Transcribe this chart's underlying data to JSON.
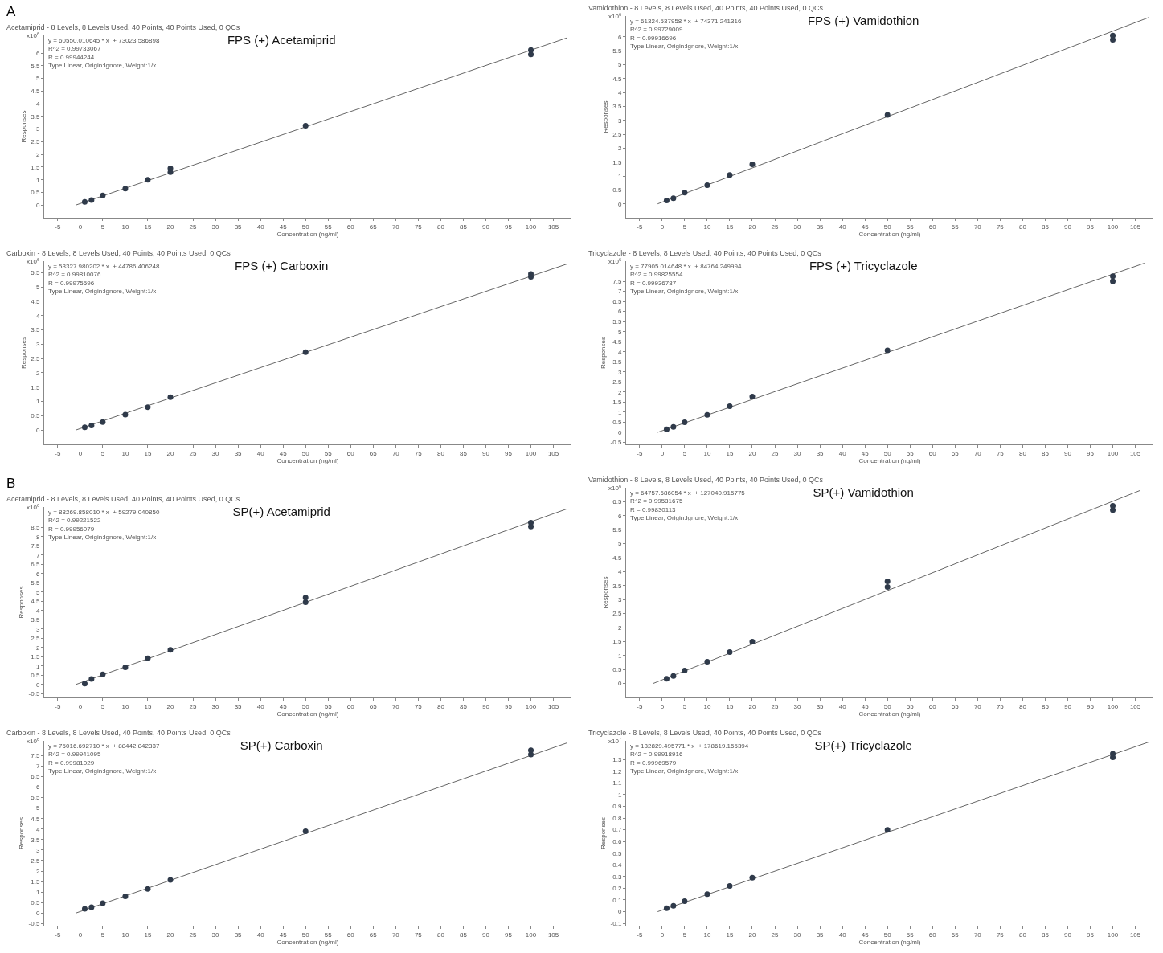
{
  "chart_data": [
    {
      "type": "scatter",
      "title": "FPS (+) Acetamiprid",
      "xlabel": "Concentration (ng/ml)",
      "ylabel": "Responses",
      "annotations": [
        "Acetamiprid - 8 Levels, 8 Levels Used, 40 Points, 40 Points Used, 0 QCs",
        "y = 60550.010645 * x  + 73023.586898\nR^2 = 0.99733067\nR = 0.99944244\nType:Linear, Origin:Ignore, Weight:1/x",
        "x10$^{6}$",
        "A"
      ],
      "xlim": [
        -8,
        109
      ],
      "xticks": [
        -5,
        0,
        5,
        10,
        15,
        20,
        25,
        30,
        35,
        40,
        45,
        50,
        55,
        60,
        65,
        70,
        75,
        80,
        85,
        90,
        95,
        100,
        105
      ],
      "ylim": [
        -0.5,
        6.7
      ],
      "yticks": [
        0,
        0.5,
        1,
        1.5,
        2,
        2.5,
        3,
        3.5,
        4,
        4.5,
        5,
        5.5,
        6
      ],
      "series": [
        {
          "color": "#2f3a4a",
          "marker": "circle",
          "x": [
            1,
            2.5,
            5,
            10,
            15,
            20,
            20,
            50,
            100,
            100
          ],
          "values": [
            0.13,
            0.2,
            0.38,
            0.65,
            1.0,
            1.3,
            1.45,
            3.13,
            5.95,
            6.12
          ]
        },
        {
          "type": "line",
          "marker": "none",
          "color": "#666666",
          "x": [
            -1,
            108
          ],
          "values": [
            0.0,
            6.6
          ]
        }
      ]
    },
    {
      "type": "scatter",
      "title": "FPS (+) Vamidothion",
      "xlabel": "Concentration (ng/ml)",
      "ylabel": "Responses",
      "annotations": [
        "Vamidothion - 8 Levels, 8 Levels Used, 40 Points, 40 Points Used, 0 QCs",
        "y = 61324.537958 * x  + 74371.241316\nR^2 = 0.99729009\nR = 0.99916696\nType:Linear, Origin:Ignore, Weight:1/x",
        "x10$^{6}$"
      ],
      "xlim": [
        -8,
        109
      ],
      "xticks": [
        -5,
        0,
        5,
        10,
        15,
        20,
        25,
        30,
        35,
        40,
        45,
        50,
        55,
        60,
        65,
        70,
        75,
        80,
        85,
        90,
        95,
        100,
        105
      ],
      "ylim": [
        -0.5,
        6.75
      ],
      "yticks": [
        0,
        0.5,
        1,
        1.5,
        2,
        2.5,
        3,
        3.5,
        4,
        4.5,
        5,
        5.5,
        6
      ],
      "series": [
        {
          "color": "#2f3a4a",
          "marker": "circle",
          "x": [
            1,
            2.5,
            5,
            10,
            15,
            20,
            50,
            100,
            100
          ],
          "values": [
            0.12,
            0.2,
            0.4,
            0.67,
            1.04,
            1.42,
            3.2,
            5.9,
            6.05
          ]
        },
        {
          "type": "line",
          "marker": "none",
          "color": "#666666",
          "x": [
            -1,
            108
          ],
          "values": [
            0.0,
            6.7
          ]
        }
      ]
    },
    {
      "type": "scatter",
      "title": "FPS (+) Carboxin",
      "xlabel": "Concentration (ng/ml)",
      "ylabel": "Responses",
      "annotations": [
        "Carboxin - 8 Levels, 8 Levels Used, 40 Points, 40 Points Used, 0 QCs",
        "y = 53327.980202 * x  + 44786.406248\nR^2 = 0.99810076\nR = 0.99975596\nType:Linear, Origin:Ignore, Weight:1/x",
        "x10$^{6}$"
      ],
      "xlim": [
        -8,
        109
      ],
      "xticks": [
        -5,
        0,
        5,
        10,
        15,
        20,
        25,
        30,
        35,
        40,
        45,
        50,
        55,
        60,
        65,
        70,
        75,
        80,
        85,
        90,
        95,
        100,
        105
      ],
      "ylim": [
        -0.5,
        5.9
      ],
      "yticks": [
        0,
        0.5,
        1,
        1.5,
        2,
        2.5,
        3,
        3.5,
        4,
        4.5,
        5,
        5.5
      ],
      "series": [
        {
          "color": "#2f3a4a",
          "marker": "circle",
          "x": [
            1,
            2.5,
            5,
            10,
            15,
            20,
            50,
            100,
            100
          ],
          "values": [
            0.1,
            0.16,
            0.28,
            0.54,
            0.8,
            1.15,
            2.72,
            5.35,
            5.45
          ]
        },
        {
          "type": "line",
          "marker": "none",
          "color": "#666666",
          "x": [
            -1,
            108
          ],
          "values": [
            0.0,
            5.8
          ]
        }
      ]
    },
    {
      "type": "scatter",
      "title": "FPS (+) Tricyclazole",
      "xlabel": "Concentration (ng/ml)",
      "ylabel": "Responses",
      "annotations": [
        "Tricyclazole - 8 Levels, 8 Levels Used, 40 Points, 40 Points Used, 0 QCs",
        "y = 77905.014648 * x  + 84764.249994\nR^2 = 0.99825554\nR = 0.99936787\nType:Linear, Origin:Ignore, Weight:1/x",
        "x10$^{6}$"
      ],
      "xlim": [
        -8,
        109
      ],
      "xticks": [
        -5,
        0,
        5,
        10,
        15,
        20,
        25,
        30,
        35,
        40,
        45,
        50,
        55,
        60,
        65,
        70,
        75,
        80,
        85,
        90,
        95,
        100,
        105
      ],
      "ylim": [
        -0.6,
        8.5
      ],
      "yticks": [
        -0.5,
        0,
        0.5,
        1,
        1.5,
        2,
        2.5,
        3,
        3.5,
        4,
        4.5,
        5,
        5.5,
        6,
        6.5,
        7,
        7.5
      ],
      "series": [
        {
          "color": "#2f3a4a",
          "marker": "circle",
          "x": [
            1,
            2.5,
            5,
            10,
            15,
            20,
            50,
            100,
            100
          ],
          "values": [
            0.15,
            0.27,
            0.5,
            0.87,
            1.3,
            1.77,
            4.07,
            7.5,
            7.75
          ]
        },
        {
          "type": "line",
          "marker": "none",
          "color": "#666666",
          "x": [
            -1,
            107
          ],
          "values": [
            0.0,
            8.4
          ]
        }
      ]
    },
    {
      "type": "scatter",
      "title": "SP(+) Acetamiprid",
      "xlabel": "Concentration (ng/ml)",
      "ylabel": "Responses",
      "annotations": [
        "Acetamiprid - 8 Levels, 8 Levels Used, 40 Points, 40 Points Used, 0 QCs",
        "y = 88269.858010 * x  + 59279.040850\nR^2 = 0.99221522\nR = 0.99956079\nType:Linear, Origin:Ignore, Weight:1/x",
        "x10$^{6}$",
        "B"
      ],
      "xlim": [
        -8,
        109
      ],
      "xticks": [
        -5,
        0,
        5,
        10,
        15,
        20,
        25,
        30,
        35,
        40,
        45,
        50,
        55,
        60,
        65,
        70,
        75,
        80,
        85,
        90,
        95,
        100,
        105
      ],
      "ylim": [
        -0.7,
        9.6
      ],
      "yticks": [
        -0.5,
        0,
        0.5,
        1,
        1.5,
        2,
        2.5,
        3,
        3.5,
        4,
        4.5,
        5,
        5.5,
        6,
        6.5,
        7,
        7.5,
        8,
        8.5
      ],
      "series": [
        {
          "color": "#2f3a4a",
          "marker": "circle",
          "x": [
            1,
            2.5,
            5,
            10,
            15,
            20,
            50,
            50,
            100,
            100
          ],
          "values": [
            0.05,
            0.3,
            0.55,
            0.93,
            1.42,
            1.87,
            4.45,
            4.7,
            8.55,
            8.75
          ]
        },
        {
          "type": "line",
          "marker": "none",
          "color": "#666666",
          "x": [
            -1,
            108
          ],
          "values": [
            0.0,
            9.5
          ]
        }
      ]
    },
    {
      "type": "scatter",
      "title": "SP(+) Vamidothion",
      "xlabel": "Concentration (ng/ml)",
      "ylabel": "Responses",
      "annotations": [
        "Vamidothion - 8 Levels, 8 Levels Used, 40 Points, 40 Points Used, 0 QCs",
        "y = 64757.686054 * x  + 127040.915775\nR^2 = 0.99581675\nR = 0.99830113\nType:Linear, Origin:Ignore, Weight:1/x",
        "x10$^{6}$"
      ],
      "xlim": [
        -8,
        109
      ],
      "xticks": [
        -5,
        0,
        5,
        10,
        15,
        20,
        25,
        30,
        35,
        40,
        45,
        50,
        55,
        60,
        65,
        70,
        75,
        80,
        85,
        90,
        95,
        100,
        105
      ],
      "ylim": [
        -0.5,
        7.0
      ],
      "yticks": [
        0,
        0.5,
        1,
        1.5,
        2,
        2.5,
        3,
        3.5,
        4,
        4.5,
        5,
        5.5,
        6,
        6.5
      ],
      "series": [
        {
          "color": "#2f3a4a",
          "marker": "circle",
          "x": [
            1,
            2.5,
            5,
            10,
            15,
            20,
            50,
            50,
            100,
            100
          ],
          "values": [
            0.17,
            0.27,
            0.46,
            0.78,
            1.12,
            1.5,
            3.45,
            3.65,
            6.2,
            6.35
          ]
        },
        {
          "type": "line",
          "marker": "none",
          "color": "#666666",
          "x": [
            -2,
            106
          ],
          "values": [
            0.0,
            6.9
          ]
        }
      ]
    },
    {
      "type": "scatter",
      "title": "SP(+) Carboxin",
      "xlabel": "Concentration (ng/ml)",
      "ylabel": "Responses",
      "annotations": [
        "Carboxin - 8 Levels, 8 Levels Used, 40 Points, 40 Points Used, 0 QCs",
        "y = 75016.692710 * x  + 88442.842337\nR^2 = 0.99941095\nR = 0.99981029\nType:Linear, Origin:Ignore, Weight:1/x",
        "x10$^{6}$"
      ],
      "xlim": [
        -8,
        109
      ],
      "xticks": [
        -5,
        0,
        5,
        10,
        15,
        20,
        25,
        30,
        35,
        40,
        45,
        50,
        55,
        60,
        65,
        70,
        75,
        80,
        85,
        90,
        95,
        100,
        105
      ],
      "ylim": [
        -0.6,
        8.2
      ],
      "yticks": [
        -0.5,
        0,
        0.5,
        1,
        1.5,
        2,
        2.5,
        3,
        3.5,
        4,
        4.5,
        5,
        5.5,
        6,
        6.5,
        7,
        7.5
      ],
      "series": [
        {
          "color": "#2f3a4a",
          "marker": "circle",
          "x": [
            1,
            2.5,
            5,
            10,
            15,
            20,
            50,
            100,
            100
          ],
          "values": [
            0.2,
            0.28,
            0.47,
            0.8,
            1.15,
            1.58,
            3.9,
            7.55,
            7.75
          ]
        },
        {
          "type": "line",
          "marker": "none",
          "color": "#666666",
          "x": [
            -1,
            108
          ],
          "values": [
            0.0,
            8.1
          ]
        }
      ]
    },
    {
      "type": "scatter",
      "title": "SP(+) Tricyclazole",
      "xlabel": "Concentration (ng/ml)",
      "ylabel": "Responses",
      "annotations": [
        "Tricyclazole - 8 Levels, 8 Levels Used, 40 Points, 40 Points Used, 0 QCs",
        "y = 132829.495771 * x  + 178619.155394\nR^2 = 0.99918916\nR = 0.99969579\nType:Linear, Origin:Ignore, Weight:1/x",
        "x10$^{7}$"
      ],
      "xlim": [
        -8,
        109
      ],
      "xticks": [
        -5,
        0,
        5,
        10,
        15,
        20,
        25,
        30,
        35,
        40,
        45,
        50,
        55,
        60,
        65,
        70,
        75,
        80,
        85,
        90,
        95,
        100,
        105
      ],
      "ylim": [
        -0.12,
        1.46
      ],
      "yticks": [
        -0.1,
        0,
        0.1,
        0.2,
        0.3,
        0.4,
        0.5,
        0.6,
        0.7,
        0.8,
        0.9,
        1,
        1.1,
        1.2,
        1.3
      ],
      "series": [
        {
          "color": "#2f3a4a",
          "marker": "circle",
          "x": [
            1,
            2.5,
            5,
            10,
            15,
            20,
            50,
            100,
            100
          ],
          "values": [
            0.03,
            0.05,
            0.09,
            0.15,
            0.22,
            0.29,
            0.7,
            1.32,
            1.35
          ]
        },
        {
          "type": "line",
          "marker": "none",
          "color": "#666666",
          "x": [
            -1,
            108
          ],
          "values": [
            0.0,
            1.45
          ]
        }
      ]
    }
  ]
}
